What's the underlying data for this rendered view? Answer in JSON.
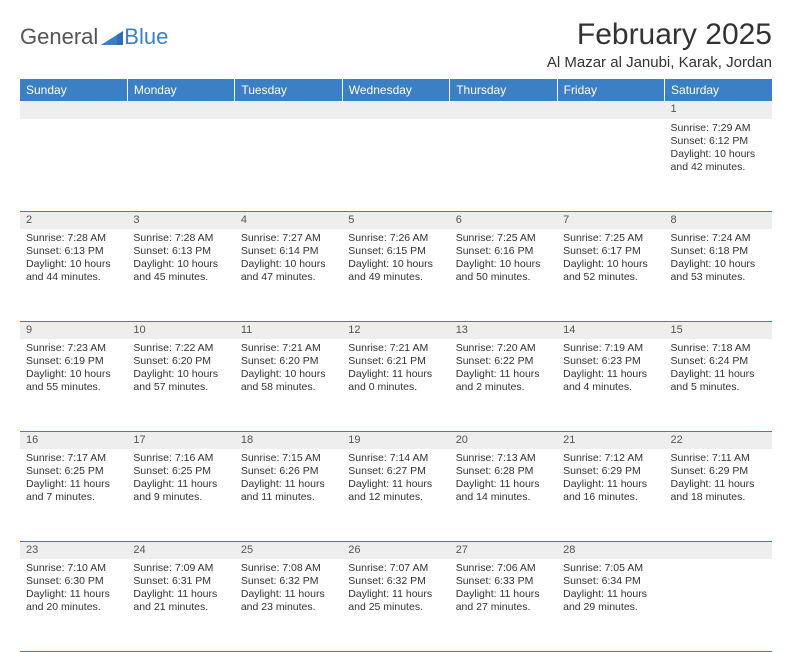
{
  "logo": {
    "general": "General",
    "blue": "Blue"
  },
  "title": "February 2025",
  "location": "Al Mazar al Janubi, Karak, Jordan",
  "colors": {
    "header_bg": "#3b7fc4",
    "header_text": "#ffffff",
    "daynum_bg": "#eeeeee",
    "border": "#3b7fc4",
    "text": "#333333",
    "logo_gray": "#555555",
    "logo_blue": "#3b7fc4"
  },
  "day_headers": [
    "Sunday",
    "Monday",
    "Tuesday",
    "Wednesday",
    "Thursday",
    "Friday",
    "Saturday"
  ],
  "weeks": [
    [
      null,
      null,
      null,
      null,
      null,
      null,
      {
        "n": "1",
        "sunrise": "7:29 AM",
        "sunset": "6:12 PM",
        "dl": "10 hours and 42 minutes."
      }
    ],
    [
      {
        "n": "2",
        "sunrise": "7:28 AM",
        "sunset": "6:13 PM",
        "dl": "10 hours and 44 minutes."
      },
      {
        "n": "3",
        "sunrise": "7:28 AM",
        "sunset": "6:13 PM",
        "dl": "10 hours and 45 minutes."
      },
      {
        "n": "4",
        "sunrise": "7:27 AM",
        "sunset": "6:14 PM",
        "dl": "10 hours and 47 minutes."
      },
      {
        "n": "5",
        "sunrise": "7:26 AM",
        "sunset": "6:15 PM",
        "dl": "10 hours and 49 minutes."
      },
      {
        "n": "6",
        "sunrise": "7:25 AM",
        "sunset": "6:16 PM",
        "dl": "10 hours and 50 minutes."
      },
      {
        "n": "7",
        "sunrise": "7:25 AM",
        "sunset": "6:17 PM",
        "dl": "10 hours and 52 minutes."
      },
      {
        "n": "8",
        "sunrise": "7:24 AM",
        "sunset": "6:18 PM",
        "dl": "10 hours and 53 minutes."
      }
    ],
    [
      {
        "n": "9",
        "sunrise": "7:23 AM",
        "sunset": "6:19 PM",
        "dl": "10 hours and 55 minutes."
      },
      {
        "n": "10",
        "sunrise": "7:22 AM",
        "sunset": "6:20 PM",
        "dl": "10 hours and 57 minutes."
      },
      {
        "n": "11",
        "sunrise": "7:21 AM",
        "sunset": "6:20 PM",
        "dl": "10 hours and 58 minutes."
      },
      {
        "n": "12",
        "sunrise": "7:21 AM",
        "sunset": "6:21 PM",
        "dl": "11 hours and 0 minutes."
      },
      {
        "n": "13",
        "sunrise": "7:20 AM",
        "sunset": "6:22 PM",
        "dl": "11 hours and 2 minutes."
      },
      {
        "n": "14",
        "sunrise": "7:19 AM",
        "sunset": "6:23 PM",
        "dl": "11 hours and 4 minutes."
      },
      {
        "n": "15",
        "sunrise": "7:18 AM",
        "sunset": "6:24 PM",
        "dl": "11 hours and 5 minutes."
      }
    ],
    [
      {
        "n": "16",
        "sunrise": "7:17 AM",
        "sunset": "6:25 PM",
        "dl": "11 hours and 7 minutes."
      },
      {
        "n": "17",
        "sunrise": "7:16 AM",
        "sunset": "6:25 PM",
        "dl": "11 hours and 9 minutes."
      },
      {
        "n": "18",
        "sunrise": "7:15 AM",
        "sunset": "6:26 PM",
        "dl": "11 hours and 11 minutes."
      },
      {
        "n": "19",
        "sunrise": "7:14 AM",
        "sunset": "6:27 PM",
        "dl": "11 hours and 12 minutes."
      },
      {
        "n": "20",
        "sunrise": "7:13 AM",
        "sunset": "6:28 PM",
        "dl": "11 hours and 14 minutes."
      },
      {
        "n": "21",
        "sunrise": "7:12 AM",
        "sunset": "6:29 PM",
        "dl": "11 hours and 16 minutes."
      },
      {
        "n": "22",
        "sunrise": "7:11 AM",
        "sunset": "6:29 PM",
        "dl": "11 hours and 18 minutes."
      }
    ],
    [
      {
        "n": "23",
        "sunrise": "7:10 AM",
        "sunset": "6:30 PM",
        "dl": "11 hours and 20 minutes."
      },
      {
        "n": "24",
        "sunrise": "7:09 AM",
        "sunset": "6:31 PM",
        "dl": "11 hours and 21 minutes."
      },
      {
        "n": "25",
        "sunrise": "7:08 AM",
        "sunset": "6:32 PM",
        "dl": "11 hours and 23 minutes."
      },
      {
        "n": "26",
        "sunrise": "7:07 AM",
        "sunset": "6:32 PM",
        "dl": "11 hours and 25 minutes."
      },
      {
        "n": "27",
        "sunrise": "7:06 AM",
        "sunset": "6:33 PM",
        "dl": "11 hours and 27 minutes."
      },
      {
        "n": "28",
        "sunrise": "7:05 AM",
        "sunset": "6:34 PM",
        "dl": "11 hours and 29 minutes."
      },
      null
    ]
  ],
  "labels": {
    "sunrise": "Sunrise:",
    "sunset": "Sunset:",
    "daylight": "Daylight:"
  }
}
